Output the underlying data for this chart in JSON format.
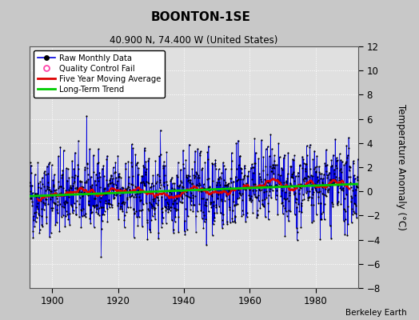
{
  "title": "BOONTON-1SE",
  "subtitle": "40.900 N, 74.400 W (United States)",
  "ylabel": "Temperature Anomaly (°C)",
  "attribution": "Berkeley Earth",
  "xlim": [
    1893,
    1993
  ],
  "ylim": [
    -8,
    12
  ],
  "yticks": [
    -8,
    -6,
    -4,
    -2,
    0,
    2,
    4,
    6,
    8,
    10,
    12
  ],
  "xticks": [
    1900,
    1920,
    1940,
    1960,
    1980
  ],
  "start_year": 1893,
  "end_year": 1993,
  "bg_color": "#c8c8c8",
  "plot_bg_color": "#e0e0e0",
  "raw_color": "#0000dd",
  "moving_avg_color": "#dd0000",
  "trend_color": "#00cc00",
  "qc_color": "#ff44aa",
  "seed": 42,
  "noise_std": 1.6
}
